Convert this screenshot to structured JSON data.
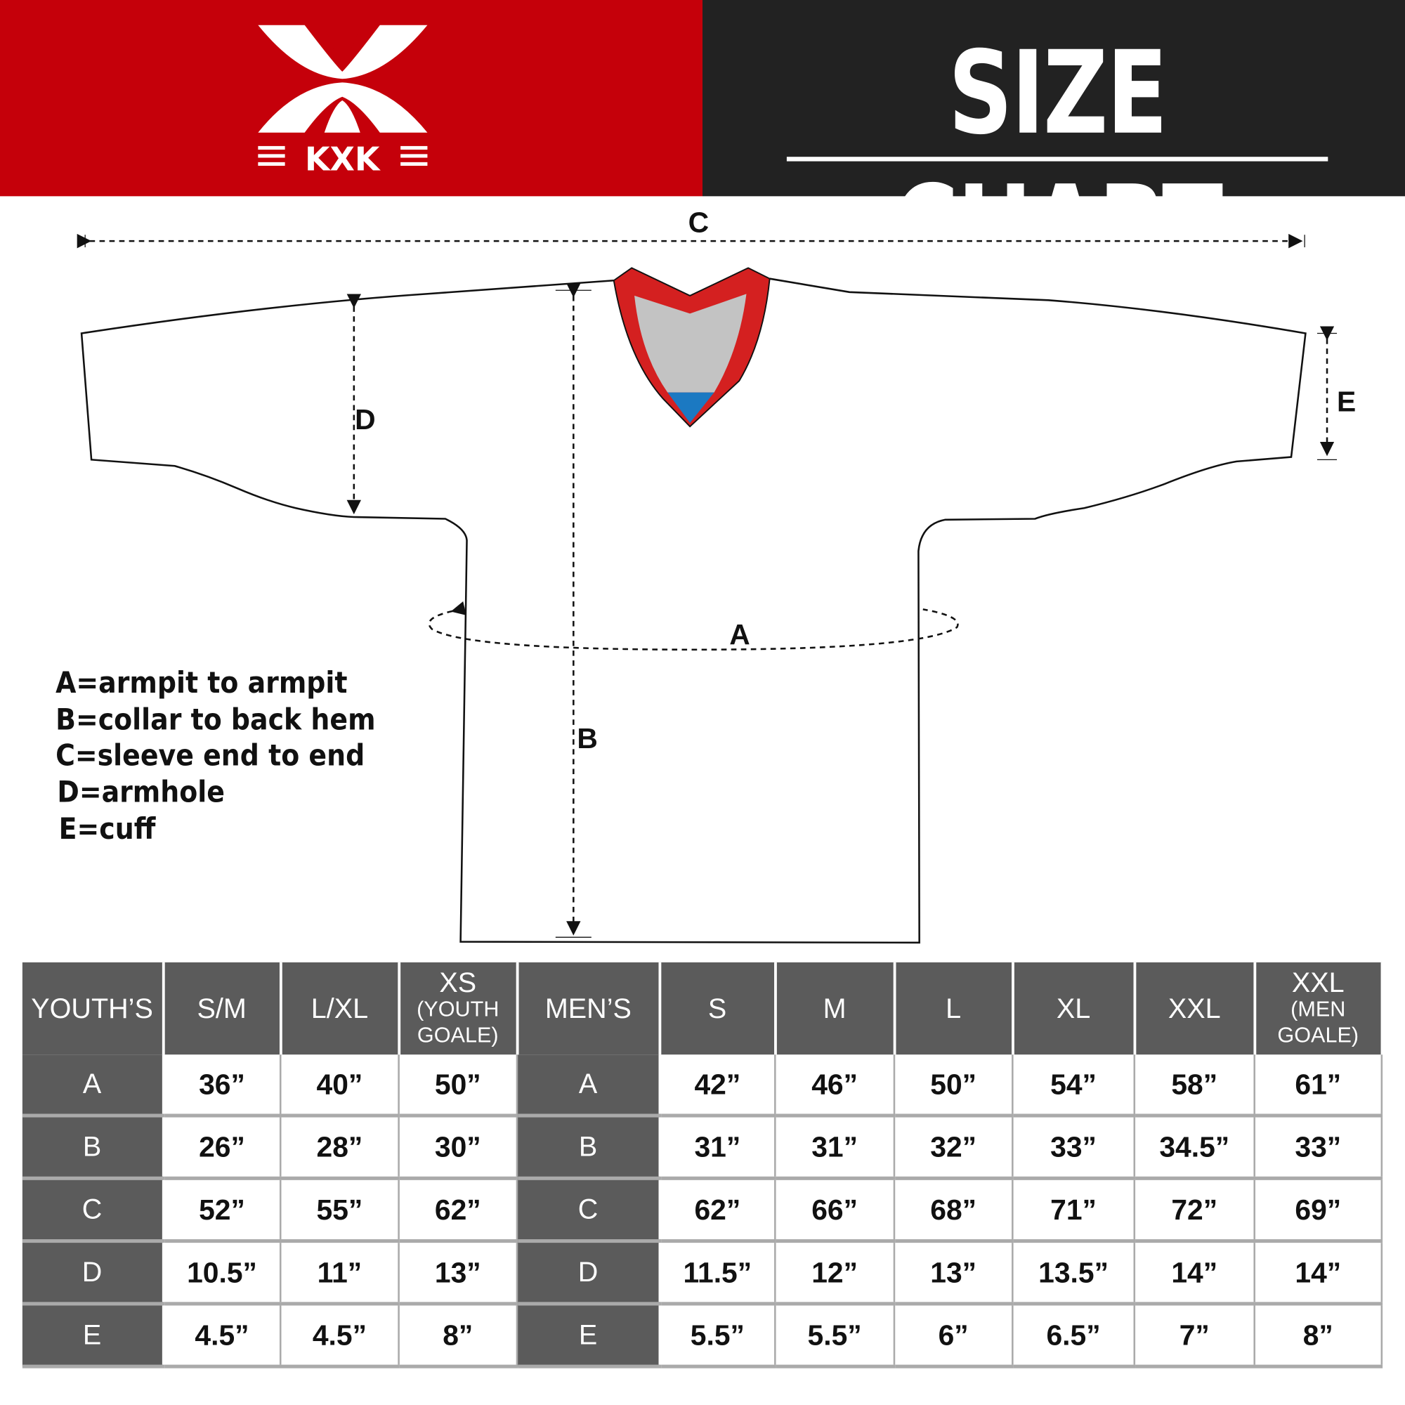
{
  "brand": {
    "logo_text": "KXK",
    "colors": {
      "red": "#c5000a",
      "dark": "#222222",
      "table_header": "#5b5b5b"
    }
  },
  "header": {
    "title": "SIZE CHART"
  },
  "diagram": {
    "labels": {
      "a": "A",
      "b": "B",
      "c": "C",
      "d": "D",
      "e": "E"
    },
    "legend": [
      "A=armpit to armpit",
      "B=collar to back hem",
      "C=sleeve end to end",
      "D=armhole",
      "E=cuff"
    ]
  },
  "table": {
    "youth_header": "YOUTH’S",
    "youth_sizes": [
      {
        "label": "S/M"
      },
      {
        "label": "L/XL"
      },
      {
        "label": "XS",
        "note": "(YOUTH GOALE)"
      }
    ],
    "men_header": "MEN’S",
    "men_sizes": [
      {
        "label": "S"
      },
      {
        "label": "M"
      },
      {
        "label": "L"
      },
      {
        "label": "XL"
      },
      {
        "label": "XXL"
      },
      {
        "label": "XXL",
        "note": "(MEN GOALE)"
      }
    ],
    "rows": [
      {
        "key": "A",
        "youth": [
          "36”",
          "40”",
          "50”"
        ],
        "men": [
          "42”",
          "46”",
          "50”",
          "54”",
          "58”",
          "61”"
        ]
      },
      {
        "key": "B",
        "youth": [
          "26”",
          "28”",
          "30”"
        ],
        "men": [
          "31”",
          "31”",
          "32”",
          "33”",
          "34.5”",
          "33”"
        ]
      },
      {
        "key": "C",
        "youth": [
          "52”",
          "55”",
          "62”"
        ],
        "men": [
          "62”",
          "66”",
          "68”",
          "71”",
          "72”",
          "69”"
        ]
      },
      {
        "key": "D",
        "youth": [
          "10.5”",
          "11”",
          "13”"
        ],
        "men": [
          "11.5”",
          "12”",
          "13”",
          "13.5”",
          "14”",
          "14”"
        ]
      },
      {
        "key": "E",
        "youth": [
          "4.5”",
          "4.5”",
          "8”"
        ],
        "men": [
          "5.5”",
          "5.5”",
          "6”",
          "6.5”",
          "7”",
          "8”"
        ]
      }
    ]
  }
}
